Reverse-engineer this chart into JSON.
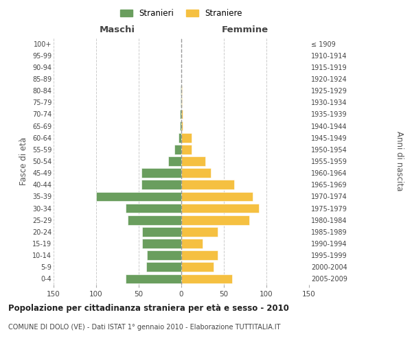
{
  "age_groups": [
    "0-4",
    "5-9",
    "10-14",
    "15-19",
    "20-24",
    "25-29",
    "30-34",
    "35-39",
    "40-44",
    "45-49",
    "50-54",
    "55-59",
    "60-64",
    "65-69",
    "70-74",
    "75-79",
    "80-84",
    "85-89",
    "90-94",
    "95-99",
    "100+"
  ],
  "birth_years": [
    "2005-2009",
    "2000-2004",
    "1995-1999",
    "1990-1994",
    "1985-1989",
    "1980-1984",
    "1975-1979",
    "1970-1974",
    "1965-1969",
    "1960-1964",
    "1955-1959",
    "1950-1954",
    "1945-1949",
    "1940-1944",
    "1935-1939",
    "1930-1934",
    "1925-1929",
    "1920-1924",
    "1915-1919",
    "1910-1914",
    "≤ 1909"
  ],
  "males": [
    65,
    41,
    40,
    46,
    46,
    63,
    65,
    100,
    47,
    47,
    15,
    8,
    3,
    2,
    2,
    1,
    1,
    0,
    0,
    0,
    0
  ],
  "females": [
    60,
    38,
    43,
    25,
    43,
    80,
    91,
    84,
    62,
    35,
    28,
    12,
    12,
    2,
    2,
    1,
    1,
    0,
    0,
    0,
    0
  ],
  "male_color": "#6a9e5e",
  "female_color": "#f5c041",
  "background_color": "#ffffff",
  "grid_color": "#cccccc",
  "title": "Popolazione per cittadinanza straniera per età e sesso - 2010",
  "subtitle": "COMUNE DI DOLO (VE) - Dati ISTAT 1° gennaio 2010 - Elaborazione TUTTITALIA.IT",
  "xlabel_left": "Maschi",
  "xlabel_right": "Femmine",
  "ylabel_left": "Fasce di età",
  "ylabel_right": "Anni di nascita",
  "legend_males": "Stranieri",
  "legend_females": "Straniere",
  "xlim": 150,
  "figsize": [
    6.0,
    5.0
  ],
  "dpi": 100
}
